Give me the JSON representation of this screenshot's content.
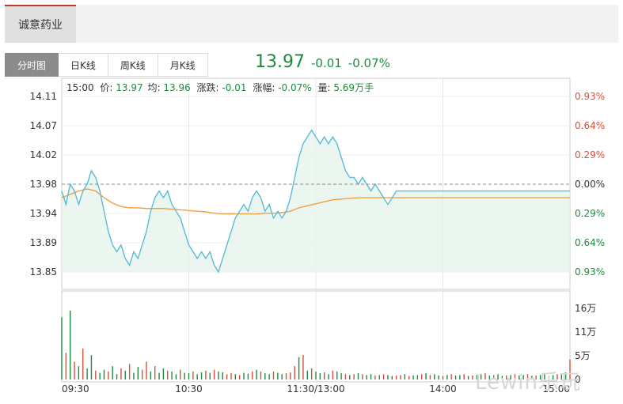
{
  "header": {
    "stock_name": "诚意药业"
  },
  "tabs": [
    {
      "label": "分时图",
      "active": true
    },
    {
      "label": "日K线",
      "active": false
    },
    {
      "label": "周K线",
      "active": false
    },
    {
      "label": "月K线",
      "active": false
    }
  ],
  "quote": {
    "price": "13.97",
    "change": "-0.01",
    "change_pct": "-0.07%"
  },
  "info_line": {
    "time": "15:00",
    "price_label": "价:",
    "price": "13.97",
    "avg_label": "均:",
    "avg": "13.96",
    "change_label": "涨跌:",
    "change": "-0.01",
    "pct_label": "涨幅:",
    "pct": "-0.07%",
    "vol_label": "量:",
    "vol": "5.69万手"
  },
  "watermark": "Lewin乐玩",
  "colors": {
    "up": "#d94e3b",
    "down": "#1e8b3c",
    "price_line": "#5bbcd6",
    "avg_line": "#f0a040",
    "fill": "#e7f4ec"
  },
  "chart_data": {
    "type": "line",
    "price_ticks": [
      "14.11",
      "14.07",
      "14.02",
      "13.98",
      "13.94",
      "13.89",
      "13.85"
    ],
    "pct_ticks": [
      "0.93%",
      "0.64%",
      "0.29%",
      "0.00%",
      "0.29%",
      "0.64%",
      "0.93%"
    ],
    "pct_tick_colors": [
      "up",
      "up",
      "up",
      "neutral",
      "down",
      "down",
      "down"
    ],
    "ylim": [
      13.85,
      14.11
    ],
    "prev_close": 13.98,
    "time_ticks": [
      "09:30",
      "10:30",
      "11:30/13:00",
      "14:00",
      "15:00"
    ],
    "volume_ticks": [
      "16万",
      "11万",
      "5万",
      "0"
    ],
    "volume_ylim": [
      0,
      160000
    ],
    "price_series": {
      "name": "价",
      "x": [
        0,
        2,
        4,
        6,
        8,
        10,
        12,
        14,
        16,
        18,
        20,
        22,
        24,
        26,
        28,
        30,
        32,
        34,
        36,
        38,
        40,
        42,
        44,
        46,
        48,
        50,
        52,
        54,
        56,
        58,
        60,
        62,
        64,
        66,
        68,
        70,
        72,
        74,
        76,
        78,
        80,
        82,
        84,
        86,
        88,
        90,
        92,
        94,
        96,
        98,
        100,
        102,
        104,
        106,
        108,
        110,
        112,
        114,
        116,
        118,
        120,
        122,
        124,
        126,
        128,
        130,
        132,
        134,
        136,
        138,
        140,
        142,
        144,
        146,
        148,
        150,
        152,
        154,
        156,
        158,
        160,
        162,
        164,
        166,
        168,
        170,
        172,
        174,
        176,
        178,
        180,
        182,
        184,
        186,
        188,
        190,
        192,
        194,
        196,
        198,
        200,
        202,
        204,
        206,
        208,
        210,
        212,
        214,
        216,
        218,
        220,
        222,
        224,
        226,
        228,
        230,
        232,
        234,
        236,
        238,
        240
      ],
      "y": [
        13.97,
        13.95,
        13.98,
        13.97,
        13.95,
        13.97,
        13.98,
        14.0,
        13.99,
        13.97,
        13.94,
        13.91,
        13.89,
        13.88,
        13.89,
        13.87,
        13.86,
        13.88,
        13.87,
        13.89,
        13.91,
        13.94,
        13.96,
        13.97,
        13.96,
        13.97,
        13.95,
        13.94,
        13.93,
        13.91,
        13.89,
        13.88,
        13.87,
        13.88,
        13.87,
        13.88,
        13.86,
        13.85,
        13.87,
        13.89,
        13.91,
        13.93,
        13.94,
        13.95,
        13.94,
        13.96,
        13.97,
        13.96,
        13.94,
        13.95,
        13.93,
        13.94,
        13.93,
        13.94,
        13.96,
        13.99,
        14.02,
        14.04,
        14.05,
        14.06,
        14.05,
        14.04,
        14.05,
        14.04,
        14.05,
        14.04,
        14.02,
        14.0,
        13.99,
        13.99,
        13.98,
        13.99,
        13.98,
        13.97,
        13.98,
        13.97,
        13.96,
        13.95,
        13.96,
        13.97,
        13.97,
        13.97,
        13.97,
        13.97,
        13.97,
        13.97,
        13.97,
        13.97,
        13.97,
        13.97,
        13.97,
        13.97,
        13.97,
        13.97,
        13.97,
        13.97,
        13.97,
        13.97,
        13.97,
        13.97,
        13.97,
        13.97,
        13.97,
        13.97,
        13.97,
        13.97,
        13.97,
        13.97,
        13.97,
        13.97,
        13.97,
        13.97,
        13.97,
        13.97,
        13.97,
        13.97,
        13.97,
        13.97,
        13.97,
        13.97,
        13.97
      ]
    },
    "avg_series": {
      "name": "均",
      "x": [
        0,
        4,
        8,
        12,
        16,
        20,
        24,
        28,
        32,
        36,
        40,
        44,
        48,
        52,
        56,
        60,
        64,
        68,
        72,
        76,
        80,
        84,
        88,
        92,
        96,
        100,
        104,
        108,
        112,
        116,
        120,
        124,
        128,
        132,
        136,
        140,
        144,
        148,
        152,
        156,
        160,
        164,
        168,
        172,
        176,
        180,
        184,
        188,
        192,
        196,
        200,
        204,
        208,
        212,
        216,
        220,
        224,
        228,
        232,
        236,
        240
      ],
      "y": [
        13.96,
        13.965,
        13.97,
        13.973,
        13.97,
        13.96,
        13.952,
        13.947,
        13.945,
        13.945,
        13.944,
        13.944,
        13.944,
        13.943,
        13.942,
        13.941,
        13.94,
        13.939,
        13.937,
        13.936,
        13.936,
        13.936,
        13.936,
        13.936,
        13.937,
        13.937,
        13.938,
        13.94,
        13.945,
        13.948,
        13.951,
        13.954,
        13.957,
        13.958,
        13.959,
        13.96,
        13.96,
        13.96,
        13.96,
        13.96,
        13.96,
        13.96,
        13.96,
        13.96,
        13.96,
        13.96,
        13.96,
        13.96,
        13.96,
        13.96,
        13.96,
        13.96,
        13.96,
        13.96,
        13.96,
        13.96,
        13.96,
        13.96,
        13.96,
        13.96,
        13.96
      ]
    },
    "volume_series": {
      "name": "量",
      "x": [
        0,
        2,
        4,
        6,
        8,
        10,
        12,
        14,
        16,
        18,
        20,
        22,
        24,
        26,
        28,
        30,
        32,
        34,
        36,
        38,
        40,
        42,
        44,
        46,
        48,
        50,
        52,
        54,
        56,
        58,
        60,
        62,
        64,
        66,
        68,
        70,
        72,
        74,
        76,
        78,
        80,
        82,
        84,
        86,
        88,
        90,
        92,
        94,
        96,
        98,
        100,
        102,
        104,
        106,
        108,
        110,
        112,
        114,
        116,
        118,
        120,
        122,
        124,
        126,
        128,
        130,
        132,
        134,
        136,
        138,
        140,
        142,
        144,
        146,
        148,
        150,
        152,
        154,
        156,
        158,
        160,
        162,
        164,
        166,
        168,
        170,
        172,
        174,
        176,
        178,
        180,
        182,
        184,
        186,
        188,
        190,
        192,
        194,
        196,
        198,
        200,
        202,
        204,
        206,
        208,
        210,
        212,
        214,
        216,
        218,
        220,
        222,
        224,
        226,
        228,
        230,
        232,
        234,
        236,
        238,
        240
      ],
      "y": [
        140000,
        60000,
        155000,
        40000,
        30000,
        70000,
        25000,
        55000,
        20000,
        15000,
        22000,
        18000,
        30000,
        12000,
        25000,
        20000,
        35000,
        15000,
        28000,
        22000,
        40000,
        18000,
        30000,
        15000,
        25000,
        20000,
        18000,
        12000,
        22000,
        15000,
        14000,
        18000,
        12000,
        16000,
        20000,
        15000,
        22000,
        18000,
        16000,
        12000,
        14000,
        12000,
        10000,
        15000,
        13000,
        18000,
        22000,
        18000,
        14000,
        12000,
        18000,
        15000,
        12000,
        14000,
        16000,
        30000,
        50000,
        55000,
        20000,
        25000,
        18000,
        14000,
        16000,
        12000,
        20000,
        18000,
        14000,
        12000,
        10000,
        12000,
        14000,
        12000,
        10000,
        12000,
        9000,
        10000,
        12000,
        10000,
        8000,
        9000,
        10000,
        12000,
        8000,
        9000,
        10000,
        12000,
        14000,
        10000,
        12000,
        9000,
        8000,
        10000,
        12000,
        9000,
        10000,
        12000,
        8000,
        9000,
        10000,
        12000,
        14000,
        9000,
        10000,
        12000,
        8000,
        9000,
        10000,
        12000,
        9000,
        10000,
        12000,
        8000,
        9000,
        10000,
        12000,
        9000,
        10000,
        12000,
        14000,
        16000,
        45000
      ],
      "direction": [
        "down",
        "up",
        "down",
        "up",
        "down",
        "up",
        "down",
        "down",
        "up",
        "down",
        "down",
        "up",
        "down",
        "down",
        "up",
        "down",
        "up",
        "down",
        "down",
        "up",
        "up",
        "down",
        "up",
        "down",
        "down",
        "up",
        "down",
        "down",
        "up",
        "down",
        "down",
        "up",
        "down",
        "down",
        "up",
        "down",
        "up",
        "down",
        "down",
        "up",
        "up",
        "down",
        "up",
        "down",
        "down",
        "up",
        "down",
        "up",
        "down",
        "down",
        "up",
        "down",
        "down",
        "up",
        "up",
        "up",
        "down",
        "up",
        "down",
        "up",
        "down",
        "down",
        "up",
        "down",
        "up",
        "down",
        "down",
        "up",
        "down",
        "up",
        "down",
        "up",
        "down",
        "down",
        "up",
        "down",
        "up",
        "down",
        "down",
        "up",
        "up",
        "down",
        "up",
        "down",
        "down",
        "up",
        "down",
        "up",
        "down",
        "down",
        "up",
        "down",
        "up",
        "down",
        "down",
        "up",
        "down",
        "up",
        "down",
        "down",
        "up",
        "down",
        "up",
        "down",
        "down",
        "up",
        "down",
        "up",
        "down",
        "down",
        "up",
        "down",
        "up",
        "down",
        "down",
        "up",
        "down",
        "up",
        "down",
        "down",
        "up"
      ]
    }
  }
}
